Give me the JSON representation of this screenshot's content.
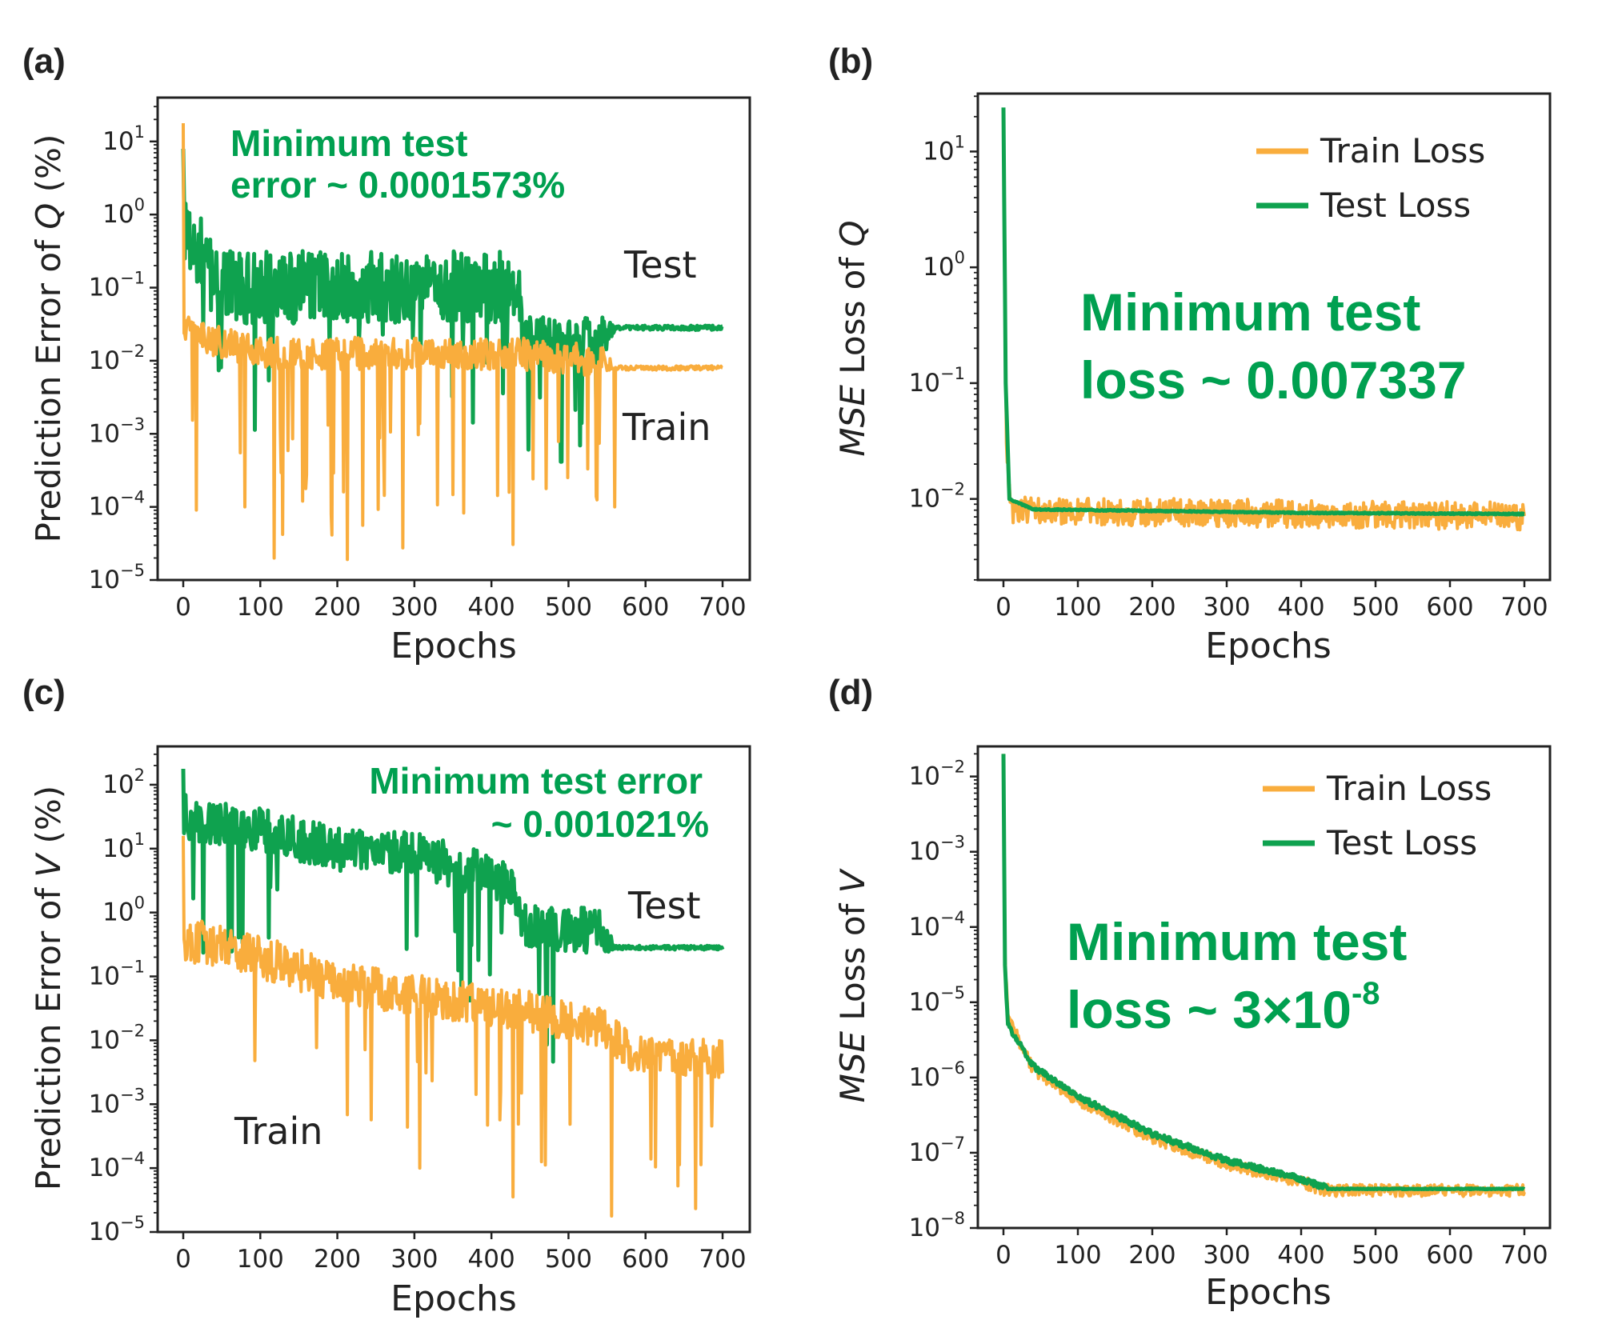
{
  "colors": {
    "train": "#f9ad3d",
    "test": "#0fa24f",
    "annotation": "#00a050",
    "axis": "#222222"
  },
  "chart_data": [
    {
      "id": "a",
      "type": "line",
      "panel_label": "(a)",
      "xlabel": "Epochs",
      "ylabel_prefix": "Prediction Error of ",
      "ylabel_var": "Q",
      "ylabel_suffix": " (%)",
      "yscale": "log",
      "xlim": [
        0,
        700
      ],
      "ylim_exp": [
        -5,
        1.6
      ],
      "xticks": [
        0,
        100,
        200,
        300,
        400,
        500,
        600,
        700
      ],
      "yticks_exp": [
        -5,
        -4,
        -3,
        -2,
        -1,
        0,
        1
      ],
      "annotation_lines": [
        "Minimum test",
        "error ~ 0.0001573%"
      ],
      "labels": {
        "test": "Test",
        "train": "Train"
      },
      "series": [
        {
          "name": "Test",
          "kind": "test",
          "start": 0.9,
          "breaks": [
            [
              0,
              -0.2
            ],
            [
              60,
              -1.0
            ],
            [
              300,
              -1.0
            ],
            [
              435,
              -1.0
            ],
            [
              440,
              -1.7
            ],
            [
              545,
              -1.7
            ],
            [
              560,
              -1.55
            ],
            [
              700,
              -1.55
            ]
          ],
          "noise": [
            [
              0,
              0.5
            ],
            [
              430,
              0.5
            ],
            [
              440,
              0.3
            ],
            [
              545,
              0.3
            ],
            [
              560,
              0.03
            ],
            [
              700,
              0.03
            ]
          ],
          "dipProb": 0.06,
          "dipDepth": [
            0.6,
            1.8
          ],
          "dipUntil": 545
        },
        {
          "name": "Train",
          "kind": "train",
          "start": 1.25,
          "breaks": [
            [
              0,
              -1.6
            ],
            [
              100,
              -1.9
            ],
            [
              430,
              -1.9
            ],
            [
              545,
              -2.0
            ],
            [
              560,
              -2.1
            ],
            [
              700,
              -2.1
            ]
          ],
          "noise": [
            [
              0,
              0.22
            ],
            [
              545,
              0.22
            ],
            [
              560,
              0.03
            ],
            [
              700,
              0.03
            ]
          ],
          "dipProb": 0.05,
          "dipDepth": [
            0.8,
            2.6
          ],
          "dipUntil": 560,
          "forcedDips": [
            [
              118,
              -4.7
            ],
            [
              213,
              -4.72
            ],
            [
              192,
              -4.1
            ],
            [
              80,
              -4.0
            ],
            [
              560,
              -4.0
            ]
          ]
        }
      ]
    },
    {
      "id": "b",
      "type": "line",
      "panel_label": "(b)",
      "xlabel": "Epochs",
      "ylabel_prefix": " Loss of ",
      "ylabel_italic": "MSE",
      "ylabel_var": "Q",
      "ylabel_suffix": "",
      "yscale": "log",
      "xlim": [
        0,
        700
      ],
      "ylim_exp": [
        -2.7,
        1.5
      ],
      "xticks": [
        0,
        100,
        200,
        300,
        400,
        500,
        600,
        700
      ],
      "yticks_exp": [
        -2,
        -1,
        0,
        1
      ],
      "legend": [
        "Train Loss",
        "Test Loss"
      ],
      "annotation_lines": [
        "Minimum test",
        "loss ~ 0.007337"
      ],
      "series": [
        {
          "name": "Train Loss",
          "kind": "train",
          "start": 1.35,
          "breaks": [
            [
              0,
              1.35
            ],
            [
              4,
              -1.5
            ],
            [
              10,
              -2.1
            ],
            [
              700,
              -2.15
            ]
          ],
          "noise": [
            [
              0,
              0.12
            ],
            [
              700,
              0.12
            ]
          ],
          "dipProb": 0,
          "dipDepth": [
            0,
            0
          ],
          "dipUntil": 0
        },
        {
          "name": "Test Loss",
          "kind": "test",
          "start": 1.38,
          "breaks": [
            [
              0,
              1.38
            ],
            [
              3,
              -1.0
            ],
            [
              8,
              -2.0
            ],
            [
              40,
              -2.09
            ],
            [
              400,
              -2.12
            ],
            [
              700,
              -2.13
            ]
          ],
          "noise": [
            [
              0,
              0.005
            ],
            [
              700,
              0.005
            ]
          ],
          "dipProb": 0,
          "dipDepth": [
            0,
            0
          ],
          "dipUntil": 0
        }
      ]
    },
    {
      "id": "c",
      "type": "line",
      "panel_label": "(c)",
      "xlabel": "Epochs",
      "ylabel_prefix": "Prediction Error of ",
      "ylabel_var": "V",
      "ylabel_suffix": " (%)",
      "yscale": "log",
      "xlim": [
        0,
        700
      ],
      "ylim_exp": [
        -5,
        2.6
      ],
      "xticks": [
        0,
        100,
        200,
        300,
        400,
        500,
        600,
        700
      ],
      "yticks_exp": [
        -5,
        -4,
        -3,
        -2,
        -1,
        0,
        1,
        2
      ],
      "annotation_lines": [
        "Minimum test error",
        "~ 0.001021%"
      ],
      "labels": {
        "test": "Test",
        "train": "Train"
      },
      "series": [
        {
          "name": "Test",
          "kind": "test",
          "start": 2.25,
          "breaks": [
            [
              0,
              1.5
            ],
            [
              100,
              1.3
            ],
            [
              200,
              1.0
            ],
            [
              300,
              0.9
            ],
            [
              400,
              0.6
            ],
            [
              430,
              0.4
            ],
            [
              440,
              -0.2
            ],
            [
              545,
              -0.3
            ],
            [
              560,
              -0.55
            ],
            [
              700,
              -0.55
            ]
          ],
          "noise": [
            [
              0,
              0.35
            ],
            [
              545,
              0.35
            ],
            [
              560,
              0.03
            ],
            [
              700,
              0.03
            ]
          ],
          "dipProb": 0.05,
          "dipDepth": [
            0.7,
            2.2
          ],
          "dipUntil": 545
        },
        {
          "name": "Train",
          "kind": "train",
          "start": 1.2,
          "breaks": [
            [
              0,
              -0.4
            ],
            [
              100,
              -0.7
            ],
            [
              200,
              -1.1
            ],
            [
              300,
              -1.3
            ],
            [
              430,
              -1.5
            ],
            [
              545,
              -1.8
            ],
            [
              580,
              -2.2
            ],
            [
              700,
              -2.3
            ]
          ],
          "noise": [
            [
              0,
              0.35
            ],
            [
              700,
              0.3
            ]
          ],
          "dipProb": 0.05,
          "dipDepth": [
            0.8,
            2.3
          ],
          "dipUntil": 700,
          "forcedDips": [
            [
              307,
              -4.0
            ],
            [
              428,
              -4.45
            ],
            [
              556,
              -4.75
            ],
            [
              465,
              -3.9
            ]
          ]
        }
      ]
    },
    {
      "id": "d",
      "type": "line",
      "panel_label": "(d)",
      "xlabel": "Epochs",
      "ylabel_prefix": " Loss of ",
      "ylabel_italic": "MSE",
      "ylabel_var": "V",
      "ylabel_suffix": "",
      "yscale": "log",
      "xlim": [
        0,
        700
      ],
      "ylim_exp": [
        -8,
        -1.6
      ],
      "xticks": [
        0,
        100,
        200,
        300,
        400,
        500,
        600,
        700
      ],
      "yticks_exp": [
        -8,
        -7,
        -6,
        -5,
        -4,
        -3,
        -2
      ],
      "legend": [
        "Train Loss",
        "Test Loss"
      ],
      "annotation_lines": [
        "Minimum test",
        "loss ~ 3×10"
      ],
      "annotation_sup": "-8",
      "series": [
        {
          "name": "Train Loss",
          "kind": "train",
          "start": -1.7,
          "breaks": [
            [
              0,
              -1.7
            ],
            [
              2,
              -4.4
            ],
            [
              6,
              -5.2
            ],
            [
              40,
              -5.9
            ],
            [
              100,
              -6.3
            ],
            [
              200,
              -6.8
            ],
            [
              300,
              -7.15
            ],
            [
              400,
              -7.38
            ],
            [
              430,
              -7.5
            ],
            [
              700,
              -7.5
            ]
          ],
          "noise": [
            [
              0,
              0.08
            ],
            [
              700,
              0.08
            ]
          ],
          "dipProb": 0,
          "dipDepth": [
            0,
            0
          ],
          "dipUntil": 0
        },
        {
          "name": "Test Loss",
          "kind": "test",
          "start": -1.7,
          "breaks": [
            [
              0,
              -1.7
            ],
            [
              2,
              -4.5
            ],
            [
              6,
              -5.3
            ],
            [
              40,
              -5.85
            ],
            [
              100,
              -6.25
            ],
            [
              200,
              -6.75
            ],
            [
              300,
              -7.1
            ],
            [
              400,
              -7.35
            ],
            [
              430,
              -7.45
            ],
            [
              440,
              -7.48
            ],
            [
              700,
              -7.48
            ]
          ],
          "noise": [
            [
              0,
              0.04
            ],
            [
              430,
              0.04
            ],
            [
              440,
              0.005
            ],
            [
              700,
              0.005
            ]
          ],
          "dipProb": 0,
          "dipDepth": [
            0,
            0
          ],
          "dipUntil": 0
        }
      ]
    }
  ]
}
